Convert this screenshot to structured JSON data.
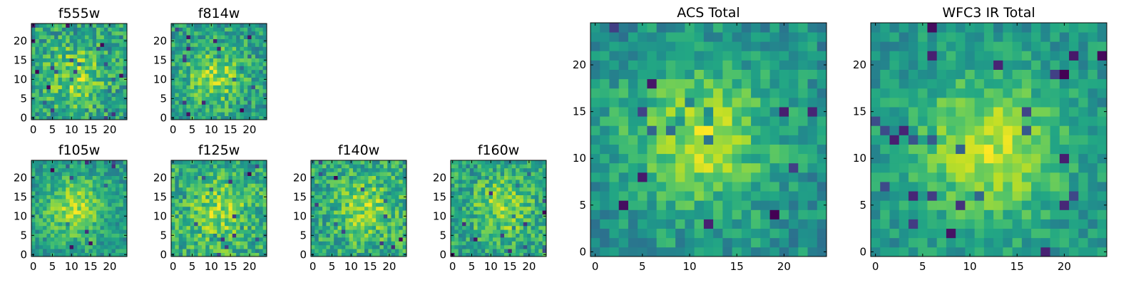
{
  "chart_data": {
    "type": "heatmap",
    "colormap": "viridis",
    "grid_size": 25,
    "panels": [
      {
        "id": "f555w",
        "title": "f555w",
        "xticks": [
          "0",
          "5",
          "10",
          "15",
          "20"
        ],
        "yticks": [
          "0",
          "5",
          "10",
          "15",
          "20"
        ],
        "center": [
          11,
          11
        ],
        "peak_strength": 0.35,
        "noise": 0.55,
        "seed": 3
      },
      {
        "id": "f814w",
        "title": "f814w",
        "xticks": [
          "0",
          "5",
          "10",
          "15",
          "20"
        ],
        "yticks": [
          "0",
          "5",
          "10",
          "15",
          "20"
        ],
        "center": [
          11,
          11
        ],
        "peak_strength": 0.4,
        "noise": 0.55,
        "seed": 7
      },
      {
        "id": "f105w",
        "title": "f105w",
        "xticks": [
          "0",
          "5",
          "10",
          "15",
          "20"
        ],
        "yticks": [
          "0",
          "5",
          "10",
          "15",
          "20"
        ],
        "center": [
          11,
          12
        ],
        "peak_strength": 0.45,
        "noise": 0.45,
        "seed": 11
      },
      {
        "id": "f125w",
        "title": "f125w",
        "xticks": [
          "0",
          "5",
          "10",
          "15",
          "20"
        ],
        "yticks": [
          "0",
          "5",
          "10",
          "15",
          "20"
        ],
        "center": [
          12,
          11
        ],
        "peak_strength": 0.3,
        "noise": 0.55,
        "seed": 13
      },
      {
        "id": "f140w",
        "title": "f140w",
        "xticks": [
          "0",
          "5",
          "10",
          "15",
          "20"
        ],
        "yticks": [
          "0",
          "5",
          "10",
          "15",
          "20"
        ],
        "center": [
          14,
          12
        ],
        "peak_strength": 0.35,
        "noise": 0.55,
        "seed": 17
      },
      {
        "id": "f160w",
        "title": "f160w",
        "xticks": [
          "0",
          "5",
          "10",
          "15",
          "20"
        ],
        "yticks": [
          "0",
          "5",
          "10",
          "15",
          "20"
        ],
        "center": [
          13,
          12
        ],
        "peak_strength": 0.35,
        "noise": 0.55,
        "seed": 19
      },
      {
        "id": "acs_total",
        "title": "ACS Total",
        "xticks": [
          "0",
          "5",
          "10",
          "15",
          "20"
        ],
        "yticks": [
          "0",
          "5",
          "10",
          "15",
          "20"
        ],
        "center": [
          11,
          12
        ],
        "peak_strength": 0.5,
        "noise": 0.4,
        "seed": 23
      },
      {
        "id": "wfc3_ir_total",
        "title": "WFC3 IR Total",
        "xticks": [
          "0",
          "5",
          "10",
          "15",
          "20"
        ],
        "yticks": [
          "0",
          "5",
          "10",
          "15",
          "20"
        ],
        "center": [
          12,
          11
        ],
        "peak_strength": 0.5,
        "noise": 0.35,
        "seed": 29
      }
    ]
  }
}
